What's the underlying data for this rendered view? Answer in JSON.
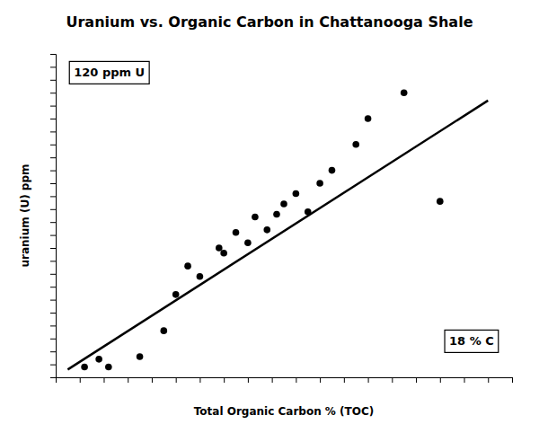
{
  "chart_data": {
    "type": "scatter",
    "title": "Uranium vs. Organic Carbon in Chattanooga Shale",
    "x_label": "Total Organic Carbon  % (TOC)",
    "y_label": "uranium (U) ppm",
    "annotations": [
      "120 ppm U",
      "18 % C"
    ],
    "series": [
      {
        "type": "scatter",
        "color": "#000000",
        "x": [
          1.2,
          1.8,
          2.2,
          3.5,
          4.5,
          5.0,
          5.5,
          6.0,
          6.8,
          7.0,
          7.5,
          8.0,
          8.3,
          8.8,
          9.2,
          9.5,
          10.0,
          10.5,
          11.0,
          11.5,
          12.5,
          13.0,
          14.5,
          16.0
        ],
        "values": [
          4,
          7,
          4,
          8,
          18,
          32,
          43,
          39,
          50,
          48,
          56,
          52,
          62,
          57,
          63,
          67,
          71,
          64,
          75,
          80,
          90,
          100,
          110,
          68
        ]
      },
      {
        "type": "line",
        "color": "#000000",
        "x": [
          0.5,
          18
        ],
        "values": [
          3,
          107
        ]
      }
    ],
    "xlim": [
      0,
      19
    ],
    "ylim": [
      0,
      125
    ],
    "xticks": [
      0,
      1,
      2,
      3,
      4,
      5,
      6,
      7,
      8,
      9,
      10,
      11,
      12,
      13,
      14,
      15,
      16,
      17,
      18,
      19
    ],
    "yticks": [
      0,
      5,
      10,
      15,
      20,
      25,
      30,
      35,
      40,
      45,
      50,
      55,
      60,
      65,
      70,
      75,
      80,
      85,
      90,
      95,
      100,
      105,
      110,
      115,
      120,
      125
    ],
    "tick_labels": false,
    "grid": false
  }
}
